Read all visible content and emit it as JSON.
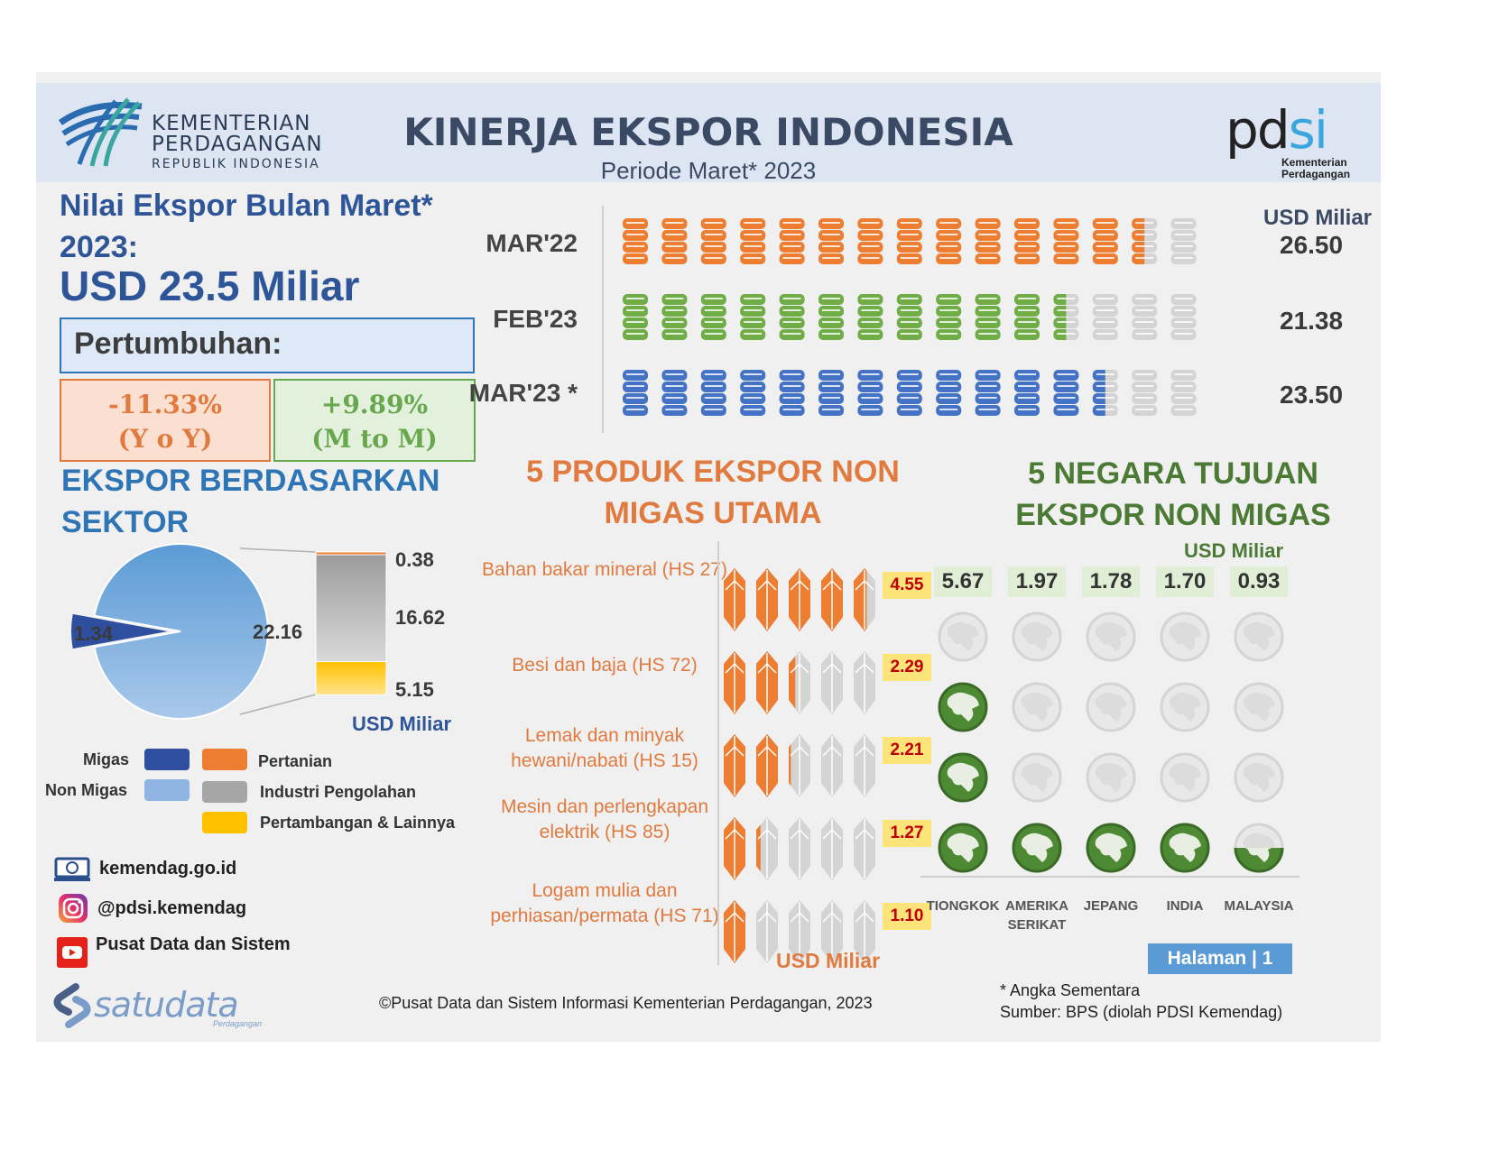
{
  "header": {
    "ministry_line1": "KEMENTERIAN",
    "ministry_line2": "PERDAGANGAN",
    "ministry_line3": "REPUBLIK INDONESIA",
    "title": "KINERJA EKSPOR INDONESIA",
    "subtitle": "Periode Maret* 2023",
    "pdsi_word_a": "pd",
    "pdsi_word_b": "si",
    "pdsi_sub1": "Kementerian",
    "pdsi_sub2": "Perdagangan"
  },
  "summary": {
    "title": "Nilai Ekspor Bulan Maret* 2023:",
    "value": "USD 23.5 Miliar",
    "growth_label": "Pertumbuhan:",
    "yoy_value": "-11.33%",
    "yoy_label": "(Y o Y)",
    "mtm_value": "+9.89%",
    "mtm_label": "(M to M)"
  },
  "colors": {
    "orange": "#ec7d31",
    "green": "#70ad47",
    "blue": "#4472c4",
    "grey": "#d4d4d4",
    "migas": "#2f4f9e",
    "non_migas": "#8fb4e3",
    "industri": "#a6a6a6",
    "pertambangan": "#ffc000",
    "globe_green": "#4e8a34"
  },
  "monthly_chart": {
    "type": "bar",
    "unit": "USD Miliar",
    "max_icons": 15,
    "rows": [
      {
        "label": "MAR'22",
        "value": 26.5,
        "value_label": "26.50",
        "color": "orange",
        "filled": 13.5
      },
      {
        "label": "FEB'23",
        "value": 21.38,
        "value_label": "21.38",
        "color": "green",
        "filled": 11.5
      },
      {
        "label": "MAR'23 *",
        "value": 23.5,
        "value_label": "23.50",
        "color": "blue",
        "filled": 12.5
      }
    ]
  },
  "sector": {
    "title": "EKSPOR BERDASARKAN SEKTOR",
    "unit": "USD Miliar",
    "migas_value": "1.34",
    "non_migas_value": "22.16",
    "breakdown": [
      {
        "name": "Pertanian",
        "value": 0.38,
        "label": "0.38"
      },
      {
        "name": "Industri Pengolahan",
        "value": 16.62,
        "label": "16.62"
      },
      {
        "name": "Pertambangan & Lainnya",
        "value": 5.15,
        "label": "5.15"
      }
    ],
    "legend": {
      "migas": "Migas",
      "non_migas": "Non Migas",
      "pertanian": "Pertanian",
      "industri": "Industri Pengolahan",
      "pertambangan": "Pertambangan & Lainnya"
    }
  },
  "chart_data": [
    {
      "type": "bar",
      "title": "",
      "categories": [
        "MAR'22",
        "FEB'23",
        "MAR'23 *"
      ],
      "values": [
        26.5,
        21.38,
        23.5
      ],
      "ylabel": "USD Miliar"
    },
    {
      "type": "pie",
      "title": "EKSPOR BERDASARKAN SEKTOR",
      "categories": [
        "Migas",
        "Non Migas"
      ],
      "values": [
        1.34,
        22.16
      ],
      "breakdown": {
        "categories": [
          "Pertanian",
          "Industri Pengolahan",
          "Pertambangan & Lainnya"
        ],
        "values": [
          0.38,
          16.62,
          5.15
        ]
      }
    },
    {
      "type": "bar",
      "title": "5 PRODUK EKSPOR NON MIGAS UTAMA",
      "categories": [
        "Bahan bakar mineral (HS 27)",
        "Besi dan baja (HS 72)",
        "Lemak dan minyak hewani/nabati (HS 15)",
        "Mesin dan perlengkapan elektrik (HS 85)",
        "Logam mulia dan perhiasan/permata (HS 71)"
      ],
      "values": [
        4.55,
        2.29,
        2.21,
        1.27,
        1.1
      ],
      "ylabel": "USD Miliar"
    },
    {
      "type": "bar",
      "title": "5 NEGARA TUJUAN EKSPOR NON MIGAS",
      "categories": [
        "TIONGKOK",
        "AMERIKA SERIKAT",
        "JEPANG",
        "INDIA",
        "MALAYSIA"
      ],
      "values": [
        5.67,
        1.97,
        1.78,
        1.7,
        0.93
      ],
      "ylabel": "USD Miliar"
    }
  ],
  "products": {
    "title": "5 PRODUK EKSPOR NON MIGAS UTAMA",
    "unit": "USD Miliar",
    "items": [
      {
        "label": "Bahan bakar mineral (HS 27)",
        "value": 4.55,
        "value_label": "4.55",
        "filled": 4.6
      },
      {
        "label": "Besi dan baja (HS 72)",
        "value": 2.29,
        "value_label": "2.29",
        "filled": 2.3
      },
      {
        "label": "Lemak dan minyak hewani/nabati (HS 15)",
        "value": 2.21,
        "value_label": "2.21",
        "filled": 2.1
      },
      {
        "label": "Mesin dan perlengkapan elektrik (HS 85)",
        "value": 1.27,
        "value_label": "1.27",
        "filled": 1.2
      },
      {
        "label": "Logam mulia dan perhiasan/permata (HS 71)",
        "value": 1.1,
        "value_label": "1.10",
        "filled": 1.0
      }
    ]
  },
  "countries": {
    "title": "5 NEGARA TUJUAN EKSPOR NON MIGAS",
    "unit": "USD Miliar",
    "items": [
      {
        "name": "TIONGKOK",
        "value": 5.67,
        "value_label": "5.67",
        "filled": 3
      },
      {
        "name": "AMERIKA SERIKAT",
        "value": 1.97,
        "value_label": "1.97",
        "filled": 1
      },
      {
        "name": "JEPANG",
        "value": 1.78,
        "value_label": "1.78",
        "filled": 1
      },
      {
        "name": "INDIA",
        "value": 1.7,
        "value_label": "1.70",
        "filled": 1
      },
      {
        "name": "MALAYSIA",
        "value": 0.93,
        "value_label": "0.93",
        "filled": 0.5
      }
    ]
  },
  "contacts": {
    "web": "kemendag.go.id",
    "instagram": "@pdsi.kemendag",
    "youtube": "Pusat Data dan Sistem"
  },
  "page": {
    "label": "Halaman | 1"
  },
  "footer": {
    "copyright": "©Pusat Data dan Sistem Informasi Kementerian Perdagangan, 2023",
    "note": "* Angka Sementara",
    "source": "Sumber: BPS (diolah PDSI Kemendag)",
    "brand": "satudata",
    "brand_sub": "Perdagangan"
  }
}
